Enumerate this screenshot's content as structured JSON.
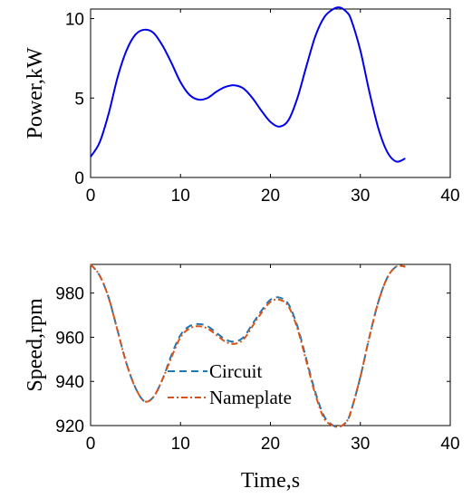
{
  "chart_data": [
    {
      "type": "line",
      "title": "",
      "xlabel": "",
      "ylabel": "Power,kW",
      "xlim": [
        0,
        40
      ],
      "ylim": [
        0,
        10.6
      ],
      "xticks": [
        "0",
        "10",
        "20",
        "30",
        "40"
      ],
      "yticks": [
        "0",
        "5",
        "10"
      ],
      "grid": false,
      "series": [
        {
          "color": "#0000ee",
          "style": "solid",
          "x": [
            0,
            1,
            2,
            3,
            4,
            5,
            6,
            7,
            8,
            9,
            10,
            11,
            12,
            13,
            14,
            15,
            16,
            17,
            18,
            19,
            20,
            21,
            22,
            23,
            24,
            25,
            26,
            27,
            27.7,
            28.5,
            29,
            30,
            31,
            32,
            33,
            34,
            35
          ],
          "y": [
            1.3,
            2.2,
            4.0,
            6.3,
            8.0,
            9.0,
            9.3,
            9.1,
            8.3,
            7.2,
            6.0,
            5.2,
            4.9,
            5.0,
            5.4,
            5.7,
            5.8,
            5.6,
            5.0,
            4.2,
            3.5,
            3.2,
            3.6,
            5.0,
            7.0,
            8.9,
            10.1,
            10.6,
            10.7,
            10.4,
            9.9,
            8.0,
            5.4,
            3.1,
            1.6,
            1.0,
            1.2
          ]
        }
      ]
    },
    {
      "type": "line",
      "title": "",
      "xlabel": "Time,s",
      "ylabel": "Speed,rpm",
      "xlim": [
        0,
        40
      ],
      "ylim": [
        920,
        993
      ],
      "xticks": [
        "0",
        "10",
        "20",
        "30",
        "40"
      ],
      "yticks": [
        "920",
        "940",
        "960",
        "980"
      ],
      "grid": false,
      "legend": "center",
      "series": [
        {
          "name": "Circuit",
          "color": "#1f77b4",
          "style": "dashed",
          "x": [
            0,
            1,
            2,
            3,
            4,
            5,
            6,
            7,
            8,
            9,
            10,
            11,
            12,
            13,
            14,
            15,
            16,
            17,
            18,
            19,
            20,
            21,
            22,
            23,
            24,
            25,
            26,
            27,
            27.7,
            28.5,
            29,
            30,
            31,
            32,
            33,
            34,
            35
          ],
          "y": [
            993,
            988,
            978,
            963,
            948,
            937,
            931,
            933,
            941,
            952,
            961,
            965,
            966,
            965,
            962,
            959,
            958,
            960,
            966,
            972,
            977,
            978,
            975,
            965,
            950,
            935,
            924,
            920,
            919.5,
            922,
            927,
            942,
            960,
            976,
            987,
            992,
            992
          ]
        },
        {
          "name": "Nameplate",
          "color": "#d95319",
          "style": "dashdot",
          "x": [
            0,
            1,
            2,
            3,
            4,
            5,
            6,
            7,
            8,
            9,
            10,
            11,
            12,
            13,
            14,
            15,
            16,
            17,
            18,
            19,
            20,
            21,
            22,
            23,
            24,
            25,
            26,
            27,
            27.7,
            28.5,
            29,
            30,
            31,
            32,
            33,
            34,
            35
          ],
          "y": [
            993,
            988,
            978,
            963,
            948,
            937,
            931,
            933,
            941,
            951,
            960,
            964,
            965,
            964,
            961,
            958,
            957,
            959,
            965,
            971,
            976,
            977,
            974,
            964,
            949,
            934,
            923,
            920,
            919.5,
            922,
            927,
            942,
            960,
            976,
            987,
            992,
            992
          ]
        }
      ]
    }
  ]
}
